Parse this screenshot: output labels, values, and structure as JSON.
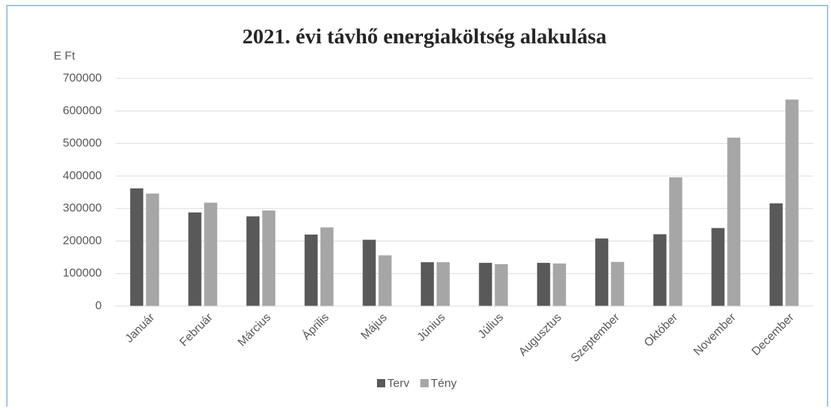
{
  "chart_data": {
    "type": "bar",
    "title": "2021. évi távhő energiaköltség alakulása",
    "y_axis_label": "E Ft",
    "categories": [
      "Január",
      "Február",
      "Március",
      "Április",
      "Május",
      "Június",
      "Július",
      "Augusztus",
      "Szeptember",
      "Október",
      "November",
      "December"
    ],
    "series": [
      {
        "name": "Terv",
        "color": "#595959",
        "values": [
          362000,
          288000,
          276000,
          220000,
          204000,
          135000,
          133000,
          133000,
          208000,
          221000,
          240000,
          316000
        ]
      },
      {
        "name": "Tény",
        "color": "#a6a6a6",
        "values": [
          346000,
          318000,
          294000,
          242000,
          156000,
          135000,
          129000,
          131000,
          136000,
          396000,
          518000,
          635000
        ]
      }
    ],
    "ylim": [
      0,
      700000
    ],
    "yticks": [
      0,
      100000,
      200000,
      300000,
      400000,
      500000,
      600000,
      700000
    ],
    "grid": true,
    "legend": "bottom"
  }
}
